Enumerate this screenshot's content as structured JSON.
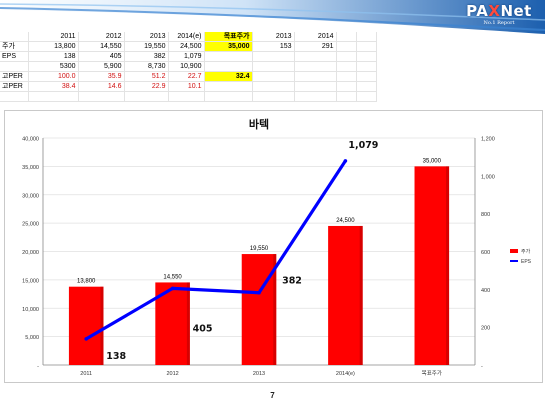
{
  "brand": {
    "name_main": "PA",
    "name_x": "X",
    "name_end": "Net",
    "tagline": "No.1 Report"
  },
  "sheet": {
    "header": [
      "",
      "2011",
      "2012",
      "2013",
      "2014(e)",
      "목표주가",
      "2013",
      "2014"
    ],
    "rows": [
      {
        "label": "주가",
        "cells": [
          "13,800",
          "14,550",
          "19,550",
          "24,500",
          "35,000",
          "153",
          "291"
        ]
      },
      {
        "label": "EPS",
        "cells": [
          "138",
          "405",
          "382",
          "1,079",
          "",
          "",
          ""
        ]
      },
      {
        "label": "",
        "cells": [
          "5300",
          "5,900",
          "8,730",
          "10,900",
          "",
          "",
          ""
        ]
      },
      {
        "label": "고PER",
        "cells": [
          "100.0",
          "35.9",
          "51.2",
          "22.7",
          "32.4",
          "",
          ""
        ]
      },
      {
        "label": "고PER",
        "cells": [
          "38.4",
          "14.6",
          "22.9",
          "10.1",
          "",
          "",
          ""
        ]
      }
    ]
  },
  "chart_data": {
    "type": "bar",
    "title": "바텍",
    "categories": [
      "2011",
      "2012",
      "2013",
      "2014(e)",
      "목표주가"
    ],
    "series": [
      {
        "name": "주가",
        "kind": "bar",
        "axis": "left",
        "color": "#ff0000",
        "values": [
          13800,
          14550,
          19550,
          24500,
          35000
        ],
        "labels": [
          "13,800",
          "14,550",
          "19,550",
          "24,500",
          "35,000"
        ]
      },
      {
        "name": "EPS",
        "kind": "line",
        "axis": "right",
        "color": "#0000ff",
        "values": [
          138,
          405,
          382,
          1079,
          null
        ],
        "labels": [
          "138",
          "405",
          "382",
          "1,079",
          ""
        ]
      }
    ],
    "y_left": {
      "min": 0,
      "max": 40000,
      "ticks": [
        "-",
        "5,000",
        "10,000",
        "15,000",
        "20,000",
        "25,000",
        "30,000",
        "35,000",
        "40,000"
      ]
    },
    "y_right": {
      "min": 0,
      "max": 1200,
      "ticks": [
        "-",
        "200",
        "400",
        "600",
        "800",
        "1,000",
        "1,200"
      ]
    },
    "legend": "right",
    "grid": true
  },
  "page_number": "7"
}
